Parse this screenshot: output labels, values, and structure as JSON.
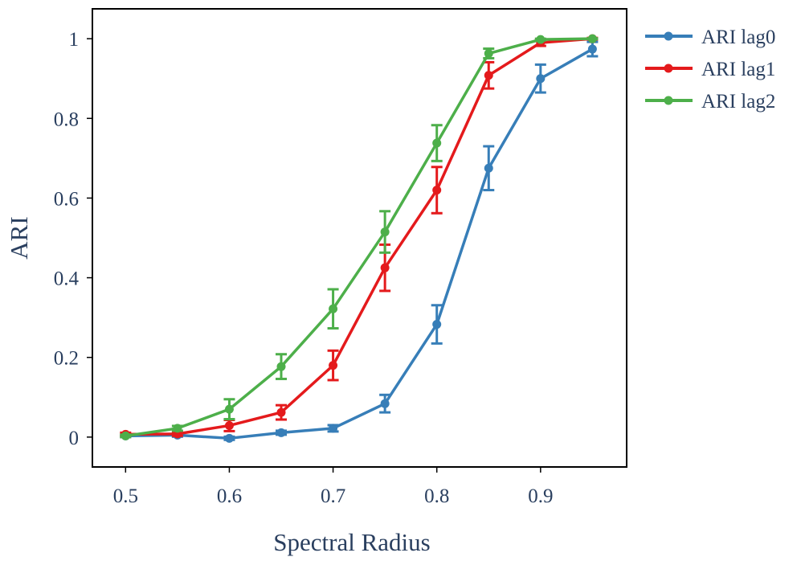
{
  "chart_data": {
    "type": "line",
    "title": "",
    "xlabel": "Spectral Radius",
    "ylabel": "ARI",
    "xlim": [
      0.468,
      0.983
    ],
    "ylim": [
      -0.075,
      1.075
    ],
    "x_ticks": [
      0.5,
      0.6,
      0.7,
      0.8,
      0.9
    ],
    "x_tick_labels": [
      "0.5",
      "0.6",
      "0.7",
      "0.8",
      "0.9"
    ],
    "y_ticks": [
      0,
      0.2,
      0.4,
      0.6,
      0.8,
      1
    ],
    "y_tick_labels": [
      "0",
      "0.2",
      "0.4",
      "0.6",
      "0.8",
      "1"
    ],
    "grid": false,
    "legend_position": "outside-top-right",
    "x": [
      0.5,
      0.55,
      0.6,
      0.65,
      0.7,
      0.75,
      0.8,
      0.85,
      0.9,
      0.95
    ],
    "series": [
      {
        "name": "ARI lag0",
        "color": "#377eb8",
        "values": [
          0.003,
          0.005,
          -0.003,
          0.011,
          0.022,
          0.084,
          0.283,
          0.675,
          0.9,
          0.974
        ],
        "errors": [
          0.003,
          0.004,
          0.004,
          0.005,
          0.008,
          0.022,
          0.048,
          0.055,
          0.035,
          0.018
        ]
      },
      {
        "name": "ARI lag1",
        "color": "#e41a1c",
        "values": [
          0.007,
          0.008,
          0.029,
          0.062,
          0.18,
          0.425,
          0.62,
          0.908,
          0.99,
          1.0
        ],
        "errors": [
          0.004,
          0.005,
          0.014,
          0.018,
          0.037,
          0.058,
          0.058,
          0.033,
          0.008,
          0.002
        ]
      },
      {
        "name": "ARI lag2",
        "color": "#4daf4a",
        "values": [
          0.003,
          0.022,
          0.07,
          0.177,
          0.322,
          0.515,
          0.738,
          0.963,
          0.998,
          1.0
        ],
        "errors": [
          0.003,
          0.006,
          0.025,
          0.031,
          0.049,
          0.052,
          0.045,
          0.012,
          0.002,
          0.001
        ]
      }
    ]
  }
}
